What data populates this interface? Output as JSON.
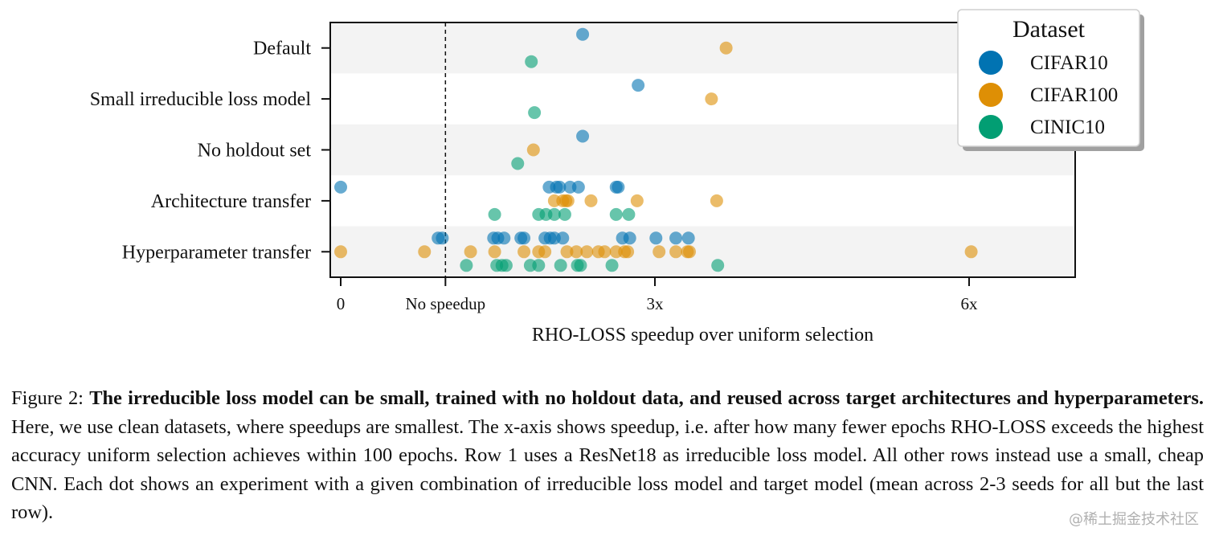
{
  "chart_data": {
    "type": "scatter",
    "title": "",
    "xlabel": "RHO-LOSS speedup over uniform selection",
    "ylabel": "",
    "xlim": [
      -0.1,
      7.1
    ],
    "xticks": [
      {
        "value": 0,
        "label": "0"
      },
      {
        "value": 1,
        "label": "No speedup"
      },
      {
        "value": 3,
        "label": "3x"
      },
      {
        "value": 6,
        "label": "6x"
      }
    ],
    "reference_line": {
      "value": 1,
      "style": "dashed",
      "label": "No speedup"
    },
    "categories": [
      "Default",
      "Small irreducible loss model",
      "No holdout set",
      "Architecture transfer",
      "Hyperparameter transfer"
    ],
    "alternating_row_shading": true,
    "legend": {
      "title": "Dataset",
      "position": "top-right"
    },
    "series": [
      {
        "name": "CIFAR10",
        "color": "#0173b2",
        "values": {
          "Default": [
            2.31
          ],
          "Small irreducible loss model": [
            2.84
          ],
          "No holdout set": [
            2.31
          ],
          "Architecture transfer": [
            0.0,
            1.99,
            2.06,
            2.09,
            2.19,
            2.27,
            2.63,
            2.65
          ],
          "Hyperparameter transfer": [
            0.93,
            0.97,
            1.46,
            1.5,
            1.56,
            1.72,
            1.75,
            1.95,
            2.0,
            2.04,
            2.12,
            2.69,
            2.76,
            3.01,
            3.2,
            3.32
          ]
        }
      },
      {
        "name": "CIFAR100",
        "color": "#de8f05",
        "values": {
          "Default": [
            3.68
          ],
          "Small irreducible loss model": [
            3.54
          ],
          "No holdout set": [
            1.84
          ],
          "Architecture transfer": [
            2.04,
            2.12,
            2.15,
            2.17,
            2.39,
            2.83,
            3.59
          ],
          "Hyperparameter transfer": [
            0.0,
            0.8,
            1.24,
            1.47,
            1.75,
            1.89,
            1.95,
            2.16,
            2.25,
            2.35,
            2.46,
            2.52,
            2.63,
            2.71,
            2.74,
            3.04,
            3.2,
            3.31,
            3.33,
            6.02
          ]
        }
      },
      {
        "name": "CINIC10",
        "color": "#029e73",
        "values": {
          "Default": [
            1.82
          ],
          "Small irreducible loss model": [
            1.85
          ],
          "No holdout set": [
            1.69
          ],
          "Architecture transfer": [
            1.47,
            1.89,
            1.96,
            2.04,
            2.14,
            2.63,
            2.75
          ],
          "Hyperparameter transfer": [
            1.2,
            1.49,
            1.54,
            1.58,
            1.81,
            1.89,
            2.1,
            2.26,
            2.29,
            2.59,
            3.6
          ]
        }
      }
    ]
  },
  "caption": {
    "label": "Figure 2:",
    "bold": "The irreducible loss model can be small, trained with no holdout data, and reused across target architectures and hyperparameters.",
    "text": "Here, we use clean datasets, where speedups are smallest. The x-axis shows speedup, i.e. after how many fewer epochs RHO-LOSS exceeds the highest accuracy uniform selection achieves within 100 epochs. Row 1 uses a ResNet18 as irreducible loss model. All other rows instead use a small, cheap CNN. Each dot shows an experiment with a given combination of irreducible loss model and target model (mean across 2-3 seeds for all but the last row)."
  },
  "watermark": "@稀土掘金技术社区"
}
